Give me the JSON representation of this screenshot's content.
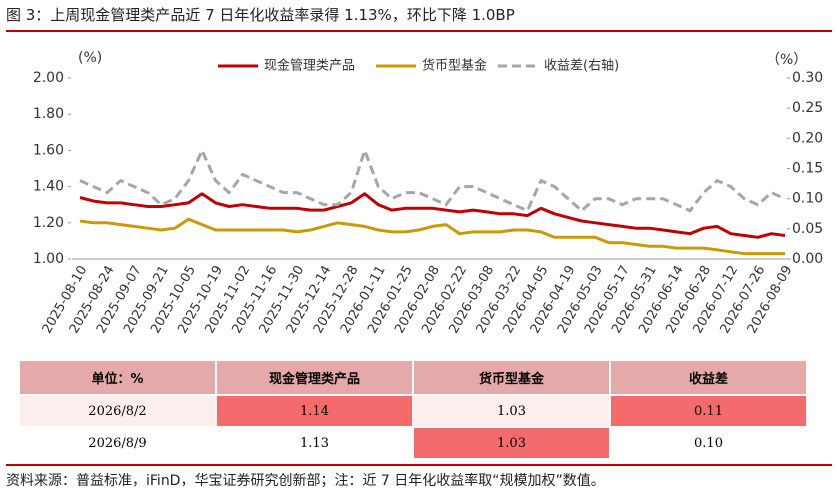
{
  "header": {
    "title": "图 3：上周现金管理类产品近 7 日年化收益率录得 1.13%，环比下降 1.0BP"
  },
  "chart_data": {
    "type": "line",
    "y_unit": "(%)",
    "y2_unit": "（%）",
    "categories": [
      "2025-08-10",
      null,
      "2025-08-24",
      null,
      "2025-09-07",
      null,
      "2025-09-21",
      null,
      "2025-10-05",
      null,
      "2025-10-19",
      null,
      "2025-11-02",
      null,
      "2025-11-16",
      null,
      "2025-11-30",
      null,
      "2025-12-14",
      null,
      "2025-12-28",
      null,
      "2026-01-11",
      null,
      "2026-01-25",
      null,
      "2026-02-08",
      null,
      "2026-02-22",
      null,
      "2026-03-08",
      null,
      "2026-03-22",
      null,
      "2026-04-05",
      null,
      "2026-04-19",
      null,
      "2026-05-03",
      null,
      "2026-05-17",
      null,
      "2026-05-31",
      null,
      "2026-06-14",
      null,
      "2026-06-28",
      null,
      "2026-07-12",
      null,
      "2026-07-26",
      null,
      "2026-08-09"
    ],
    "series": [
      {
        "name": "现金管理类产品",
        "color": "#c00000",
        "dash": false,
        "values": [
          1.34,
          1.32,
          1.31,
          1.31,
          1.3,
          1.29,
          1.29,
          1.3,
          1.31,
          1.36,
          1.31,
          1.29,
          1.3,
          1.29,
          1.28,
          1.28,
          1.28,
          1.27,
          1.27,
          1.29,
          1.31,
          1.36,
          1.3,
          1.27,
          1.28,
          1.28,
          1.28,
          1.27,
          1.26,
          1.27,
          1.26,
          1.25,
          1.25,
          1.24,
          1.28,
          1.25,
          1.23,
          1.21,
          1.2,
          1.19,
          1.18,
          1.17,
          1.17,
          1.16,
          1.15,
          1.14,
          1.17,
          1.18,
          1.14,
          1.13,
          1.12,
          1.14,
          1.13
        ]
      },
      {
        "name": "货币型基金",
        "color": "#c99a06",
        "dash": false,
        "values": [
          1.21,
          1.2,
          1.2,
          1.19,
          1.18,
          1.17,
          1.16,
          1.17,
          1.22,
          1.19,
          1.16,
          1.16,
          1.16,
          1.16,
          1.16,
          1.16,
          1.15,
          1.16,
          1.18,
          1.2,
          1.19,
          1.18,
          1.16,
          1.15,
          1.15,
          1.16,
          1.18,
          1.19,
          1.14,
          1.15,
          1.15,
          1.15,
          1.16,
          1.16,
          1.15,
          1.12,
          1.12,
          1.12,
          1.12,
          1.09,
          1.09,
          1.08,
          1.07,
          1.07,
          1.06,
          1.06,
          1.06,
          1.05,
          1.04,
          1.03,
          1.03,
          1.03,
          1.03
        ]
      },
      {
        "name": "收益差(右轴)",
        "color": "#a6a6a6",
        "dash": true,
        "axis": "y2",
        "values": [
          0.13,
          0.12,
          0.11,
          0.13,
          0.12,
          0.11,
          0.09,
          0.1,
          0.13,
          0.18,
          0.13,
          0.11,
          0.14,
          0.13,
          0.12,
          0.11,
          0.11,
          0.1,
          0.09,
          0.09,
          0.11,
          0.18,
          0.12,
          0.1,
          0.11,
          0.11,
          0.1,
          0.09,
          0.12,
          0.12,
          0.11,
          0.1,
          0.09,
          0.08,
          0.13,
          0.12,
          0.1,
          0.08,
          0.1,
          0.1,
          0.09,
          0.1,
          0.1,
          0.1,
          0.09,
          0.08,
          0.11,
          0.13,
          0.12,
          0.1,
          0.09,
          0.11,
          0.1
        ]
      }
    ],
    "ylim": [
      1.0,
      2.0
    ],
    "yticks": [
      {
        "value": 1.0,
        "label": "1.00"
      },
      {
        "value": 1.2,
        "label": "1.20"
      },
      {
        "value": 1.4,
        "label": "1.40"
      },
      {
        "value": 1.6,
        "label": "1.60"
      },
      {
        "value": 1.8,
        "label": "1.80"
      },
      {
        "value": 2.0,
        "label": "2.00"
      }
    ],
    "y2lim": [
      0,
      0.3
    ],
    "y2ticks": [
      {
        "value": 0,
        "label": "0.00"
      },
      {
        "value": 0.05,
        "label": "0.05"
      },
      {
        "value": 0.1,
        "label": "0.10"
      },
      {
        "value": 0.15,
        "label": "0.15"
      },
      {
        "value": 0.2,
        "label": "0.20"
      },
      {
        "value": 0.25,
        "label": "0.25"
      },
      {
        "value": 0.3,
        "label": "0.30"
      }
    ],
    "legend": "top"
  },
  "table": {
    "header": [
      "单位：%",
      "现金管理类产品",
      "货币型基金",
      "收益差"
    ],
    "rows": [
      [
        "2026/8/2",
        "1.14",
        "1.03",
        "0.11"
      ],
      [
        "2026/8/9",
        "1.13",
        "1.03",
        "0.10"
      ]
    ]
  },
  "footer": {
    "source": "资料来源：普益标准，iFinD，华宝证券研究创新部；注：近 7 日年化收益率取“规模加权”数值。"
  }
}
